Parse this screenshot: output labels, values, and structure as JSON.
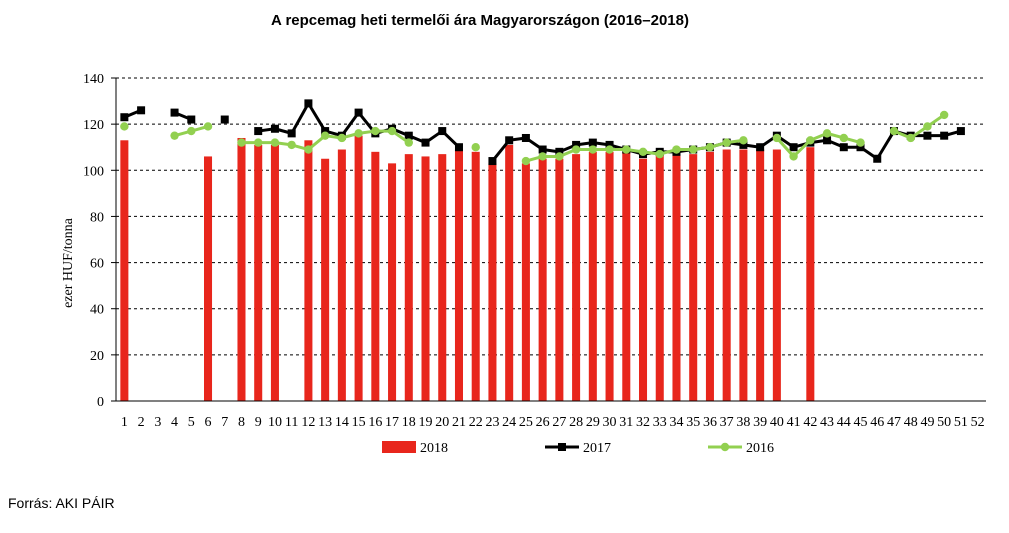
{
  "chart_data": {
    "type": "bar",
    "title": "A repcemag heti termelői ára Magyarországon (2016–2018)",
    "ylabel": "ezer HUF/tonna",
    "xlabel": "",
    "ylim": [
      0,
      140
    ],
    "yticks": [
      0,
      20,
      40,
      60,
      80,
      100,
      120,
      140
    ],
    "grid": true,
    "legend_position": "bottom",
    "categories": [
      1,
      2,
      3,
      4,
      5,
      6,
      7,
      8,
      9,
      10,
      11,
      12,
      13,
      14,
      15,
      16,
      17,
      18,
      19,
      20,
      21,
      22,
      23,
      24,
      25,
      26,
      27,
      28,
      29,
      30,
      31,
      32,
      33,
      34,
      35,
      36,
      37,
      38,
      39,
      40,
      41,
      42,
      43,
      44,
      45,
      46,
      47,
      48,
      49,
      50,
      51,
      52
    ],
    "series": [
      {
        "name": "2018",
        "kind": "bar",
        "color": "#e8261c",
        "values": [
          113,
          null,
          null,
          null,
          null,
          106,
          null,
          114,
          111,
          111,
          null,
          113,
          105,
          109,
          115,
          108,
          103,
          107,
          106,
          107,
          109,
          108,
          103,
          111,
          103,
          105,
          105,
          107,
          108,
          108,
          108,
          105,
          107,
          107,
          107,
          108,
          109,
          109,
          109,
          109,
          null,
          110,
          null,
          null,
          null,
          null,
          null,
          null,
          null,
          null,
          null,
          null
        ]
      },
      {
        "name": "2017",
        "kind": "line",
        "color": "#000000",
        "values": [
          123,
          126,
          null,
          125,
          122,
          null,
          122,
          null,
          117,
          118,
          116,
          129,
          117,
          115,
          125,
          116,
          118,
          115,
          112,
          117,
          110,
          null,
          104,
          113,
          114,
          109,
          108,
          111,
          112,
          111,
          109,
          107,
          108,
          108,
          109,
          110,
          112,
          111,
          110,
          115,
          110,
          112,
          113,
          110,
          110,
          105,
          117,
          115,
          115,
          115,
          117,
          null
        ]
      },
      {
        "name": "2016",
        "kind": "line",
        "color": "#92d050",
        "values": [
          119,
          null,
          null,
          115,
          117,
          119,
          null,
          112,
          112,
          112,
          111,
          109,
          115,
          114,
          116,
          117,
          117,
          112,
          null,
          null,
          null,
          110,
          null,
          null,
          104,
          106,
          106,
          109,
          109,
          109,
          109,
          108,
          107,
          109,
          109,
          110,
          112,
          113,
          null,
          114,
          106,
          113,
          116,
          114,
          112,
          null,
          117,
          114,
          119,
          124,
          null,
          null
        ]
      }
    ]
  },
  "source_text": "Forrás: AKI PÁIR"
}
